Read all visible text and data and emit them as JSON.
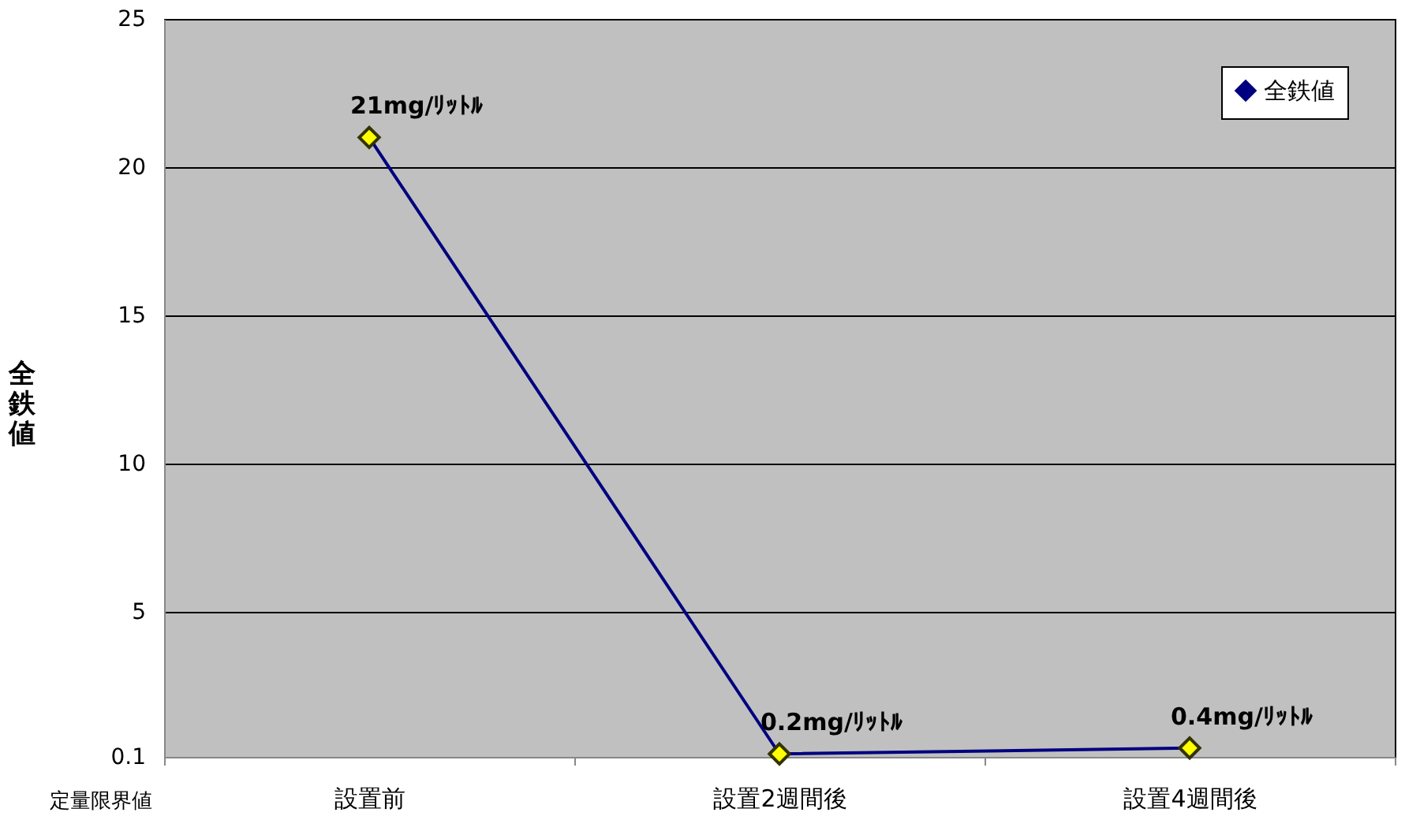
{
  "chart_data": {
    "type": "line",
    "ylabel": "全鉄値",
    "categories": [
      "設置前",
      "設置2週間後",
      "設置4週間後"
    ],
    "series": [
      {
        "name": "全鉄値",
        "color": "#000080",
        "values": [
          21,
          0.2,
          0.4
        ],
        "value_labels": [
          "21mg/ﾘｯﾄﾙ",
          "0.2mg/ﾘｯﾄﾙ",
          "0.4mg/ﾘｯﾄﾙ"
        ]
      }
    ],
    "ylim": [
      0.1,
      25
    ],
    "yticks": [
      0.1,
      5,
      10,
      15,
      20,
      25
    ],
    "grid": "y",
    "legend": "top right",
    "marker": "diamond",
    "line_style": "solid",
    "annotations": [
      "定量限界値"
    ]
  }
}
